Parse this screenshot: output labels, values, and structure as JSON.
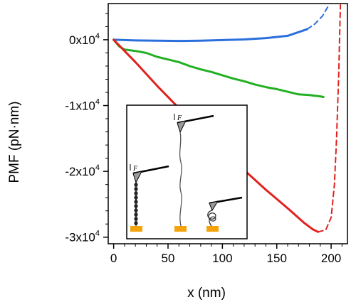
{
  "chart_data": {
    "type": "line",
    "title": "",
    "xlabel": "x (nm)",
    "ylabel": "PMF (pN·nm)",
    "xlim": [
      -5,
      215
    ],
    "ylim": [
      -31000,
      5500
    ],
    "x_ticks": [
      {
        "value": 0,
        "label": "0"
      },
      {
        "value": 50,
        "label": "50"
      },
      {
        "value": 100,
        "label": "100"
      },
      {
        "value": 150,
        "label": "150"
      },
      {
        "value": 200,
        "label": "200"
      }
    ],
    "y_ticks": [
      {
        "value": 0,
        "mantissa": "0x10",
        "exponent": "4"
      },
      {
        "value": -10000,
        "mantissa": "-1x10",
        "exponent": "4"
      },
      {
        "value": -20000,
        "mantissa": "-2x10",
        "exponent": "4"
      },
      {
        "value": -30000,
        "mantissa": "-3x10",
        "exponent": "4"
      }
    ],
    "series": [
      {
        "color": "#2a6fdb",
        "values": [
          [
            0,
            0
          ],
          [
            20,
            -100
          ],
          [
            40,
            -150
          ],
          [
            60,
            -180
          ],
          [
            80,
            -150
          ],
          [
            100,
            -50
          ],
          [
            120,
            50
          ],
          [
            140,
            250
          ],
          [
            160,
            600
          ],
          [
            178,
            1600
          ]
        ]
      },
      {
        "color": "#2a6fdb",
        "dashed": true,
        "values": [
          [
            178,
            1600
          ],
          [
            185,
            2400
          ],
          [
            192,
            3600
          ],
          [
            198,
            5300
          ]
        ]
      },
      {
        "color": "#22b022",
        "values": [
          [
            0,
            0
          ],
          [
            5,
            -1000
          ],
          [
            10,
            -1500
          ],
          [
            20,
            -1700
          ],
          [
            30,
            -2000
          ],
          [
            40,
            -2600
          ],
          [
            50,
            -3000
          ],
          [
            60,
            -3400
          ],
          [
            70,
            -4000
          ],
          [
            80,
            -4500
          ],
          [
            90,
            -4900
          ],
          [
            100,
            -5400
          ],
          [
            110,
            -5900
          ],
          [
            120,
            -6300
          ],
          [
            130,
            -6800
          ],
          [
            140,
            -7200
          ],
          [
            150,
            -7500
          ],
          [
            160,
            -7900
          ],
          [
            170,
            -8300
          ],
          [
            180,
            -8400
          ],
          [
            190,
            -8600
          ],
          [
            193,
            -8700
          ]
        ]
      },
      {
        "color": "#e0221e",
        "values": [
          [
            0,
            0
          ],
          [
            20,
            -3400
          ],
          [
            40,
            -7000
          ],
          [
            60,
            -10400
          ],
          [
            80,
            -13600
          ],
          [
            100,
            -16800
          ],
          [
            120,
            -19800
          ],
          [
            140,
            -22800
          ],
          [
            160,
            -25600
          ],
          [
            175,
            -27800
          ],
          [
            183,
            -28800
          ],
          [
            188,
            -29200
          ]
        ]
      },
      {
        "color": "#e0221e",
        "dashed": true,
        "values": [
          [
            188,
            -29200
          ],
          [
            195,
            -28900
          ],
          [
            200,
            -27000
          ],
          [
            203,
            -22000
          ],
          [
            205,
            -15000
          ],
          [
            207,
            -5000
          ],
          [
            208.5,
            5300
          ]
        ]
      }
    ],
    "inset": "schematic of an AFM cantilever pulling a molecule (pulling force F) in three states: chain of beads, extended chain, folded"
  },
  "inset": {
    "force_label": "F"
  }
}
